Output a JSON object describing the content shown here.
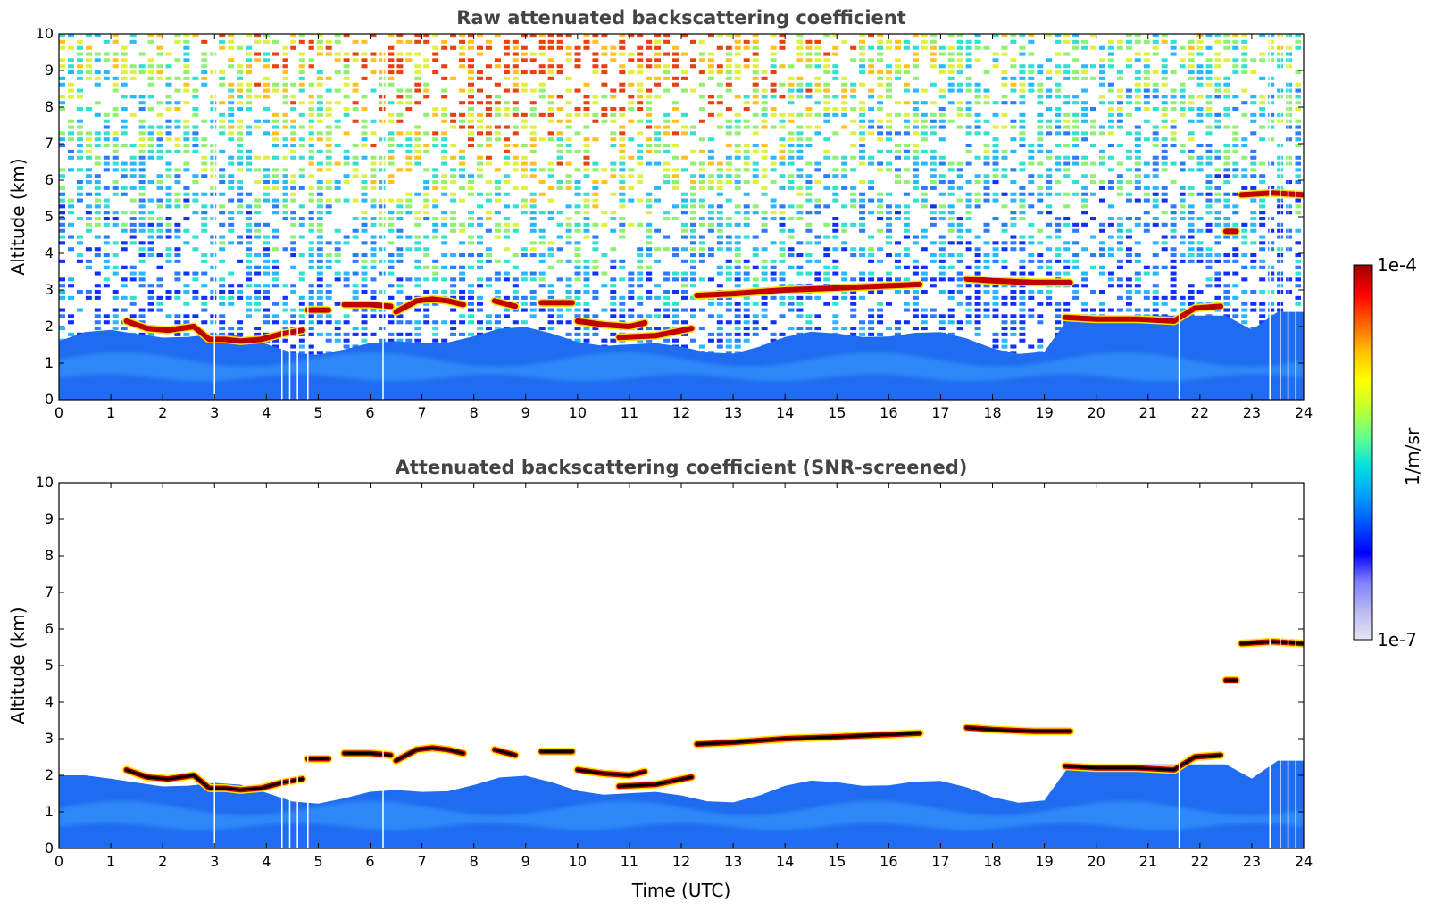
{
  "chart_data": [
    {
      "type": "heatmap",
      "title": "Raw attenuated backscattering coefficient",
      "xlabel": "",
      "ylabel": "Altitude (km)",
      "xlim": [
        0,
        24
      ],
      "ylim": [
        0,
        10
      ],
      "xticks": [
        0,
        1,
        2,
        3,
        4,
        5,
        6,
        7,
        8,
        9,
        10,
        11,
        12,
        13,
        14,
        15,
        16,
        17,
        18,
        19,
        20,
        21,
        22,
        23,
        24
      ],
      "yticks": [
        0,
        1,
        2,
        3,
        4,
        5,
        6,
        7,
        8,
        9,
        10
      ],
      "screened": false,
      "cloud_layers": [
        {
          "t": [
            1.3,
            1.7,
            2.1,
            2.6,
            2.9,
            3.2,
            3.5,
            3.9,
            4.3,
            4.7
          ],
          "alt": [
            2.15,
            1.95,
            1.9,
            2.0,
            1.65,
            1.65,
            1.6,
            1.65,
            1.8,
            1.9
          ]
        },
        {
          "t": [
            4.8,
            5.2
          ],
          "alt": [
            2.45,
            2.45
          ]
        },
        {
          "t": [
            5.5,
            6.0,
            6.4
          ],
          "alt": [
            2.6,
            2.6,
            2.55
          ]
        },
        {
          "t": [
            6.5,
            6.9,
            7.2,
            7.5,
            7.8
          ],
          "alt": [
            2.4,
            2.7,
            2.75,
            2.7,
            2.6
          ]
        },
        {
          "t": [
            8.4,
            8.8
          ],
          "alt": [
            2.7,
            2.55
          ]
        },
        {
          "t": [
            9.3,
            9.9
          ],
          "alt": [
            2.65,
            2.65
          ]
        },
        {
          "t": [
            10.0,
            10.5,
            11.0,
            11.3
          ],
          "alt": [
            2.15,
            2.05,
            2.0,
            2.1
          ]
        },
        {
          "t": [
            10.8,
            11.5,
            12.2
          ],
          "alt": [
            1.7,
            1.75,
            1.95
          ]
        },
        {
          "t": [
            12.3,
            13.0,
            14.0,
            15.0,
            15.8,
            16.6
          ],
          "alt": [
            2.85,
            2.9,
            3.0,
            3.05,
            3.1,
            3.15
          ]
        },
        {
          "t": [
            17.5,
            18.0,
            18.8,
            19.5
          ],
          "alt": [
            3.3,
            3.25,
            3.2,
            3.2
          ]
        },
        {
          "t": [
            19.4,
            20.0,
            20.8,
            21.5,
            21.9,
            22.4
          ],
          "alt": [
            2.25,
            2.2,
            2.2,
            2.15,
            2.5,
            2.55
          ]
        },
        {
          "t": [
            22.8,
            23.4,
            24.0
          ],
          "alt": [
            5.6,
            5.65,
            5.6
          ]
        },
        {
          "t": [
            22.5,
            22.7
          ],
          "alt": [
            4.6,
            4.6
          ]
        }
      ]
    },
    {
      "type": "heatmap",
      "title": "Attenuated backscattering coefficient (SNR-screened)",
      "xlabel": "Time (UTC)",
      "ylabel": "Altitude (km)",
      "xlim": [
        0,
        24
      ],
      "ylim": [
        0,
        10
      ],
      "xticks": [
        0,
        1,
        2,
        3,
        4,
        5,
        6,
        7,
        8,
        9,
        10,
        11,
        12,
        13,
        14,
        15,
        16,
        17,
        18,
        19,
        20,
        21,
        22,
        23,
        24
      ],
      "yticks": [
        0,
        1,
        2,
        3,
        4,
        5,
        6,
        7,
        8,
        9,
        10
      ],
      "screened": true,
      "cloud_layers": [
        {
          "t": [
            1.3,
            1.7,
            2.1,
            2.6,
            2.9,
            3.2,
            3.5,
            3.9,
            4.3,
            4.7
          ],
          "alt": [
            2.15,
            1.95,
            1.9,
            2.0,
            1.65,
            1.65,
            1.6,
            1.65,
            1.8,
            1.9
          ]
        },
        {
          "t": [
            4.8,
            5.2
          ],
          "alt": [
            2.45,
            2.45
          ]
        },
        {
          "t": [
            5.5,
            6.0,
            6.4
          ],
          "alt": [
            2.6,
            2.6,
            2.55
          ]
        },
        {
          "t": [
            6.5,
            6.9,
            7.2,
            7.5,
            7.8
          ],
          "alt": [
            2.4,
            2.7,
            2.75,
            2.7,
            2.6
          ]
        },
        {
          "t": [
            8.4,
            8.8
          ],
          "alt": [
            2.7,
            2.55
          ]
        },
        {
          "t": [
            9.3,
            9.9
          ],
          "alt": [
            2.65,
            2.65
          ]
        },
        {
          "t": [
            10.0,
            10.5,
            11.0,
            11.3
          ],
          "alt": [
            2.15,
            2.05,
            2.0,
            2.1
          ]
        },
        {
          "t": [
            10.8,
            11.5,
            12.2
          ],
          "alt": [
            1.7,
            1.75,
            1.95
          ]
        },
        {
          "t": [
            12.3,
            13.0,
            14.0,
            15.0,
            15.8,
            16.6
          ],
          "alt": [
            2.85,
            2.9,
            3.0,
            3.05,
            3.1,
            3.15
          ]
        },
        {
          "t": [
            17.5,
            18.0,
            18.8,
            19.5
          ],
          "alt": [
            3.3,
            3.25,
            3.2,
            3.2
          ]
        },
        {
          "t": [
            19.4,
            20.0,
            20.8,
            21.5,
            21.9,
            22.4
          ],
          "alt": [
            2.25,
            2.2,
            2.2,
            2.15,
            2.5,
            2.55
          ]
        },
        {
          "t": [
            22.8,
            23.4,
            24.0
          ],
          "alt": [
            5.6,
            5.65,
            5.6
          ]
        },
        {
          "t": [
            22.5,
            22.7
          ],
          "alt": [
            4.6,
            4.6
          ]
        }
      ]
    }
  ],
  "colorbar": {
    "max_label": "1e-4",
    "min_label": "1e-7",
    "unit_label": "1/m/sr",
    "colors": [
      "#e6e6f5",
      "#b8b8f0",
      "#8080ff",
      "#0000ff",
      "#0050ff",
      "#00a0ff",
      "#00e0e0",
      "#60ff90",
      "#c0ff30",
      "#ffff00",
      "#ffc000",
      "#ff6000",
      "#ff0000",
      "#a00000"
    ]
  },
  "colors": {
    "background": "#ffffff",
    "title": "#444444",
    "boundary_layer": "#1f6cf0",
    "cloud_edge": "#ffe000",
    "cloud_core": "#c00000",
    "cloud_black": "#000000"
  }
}
